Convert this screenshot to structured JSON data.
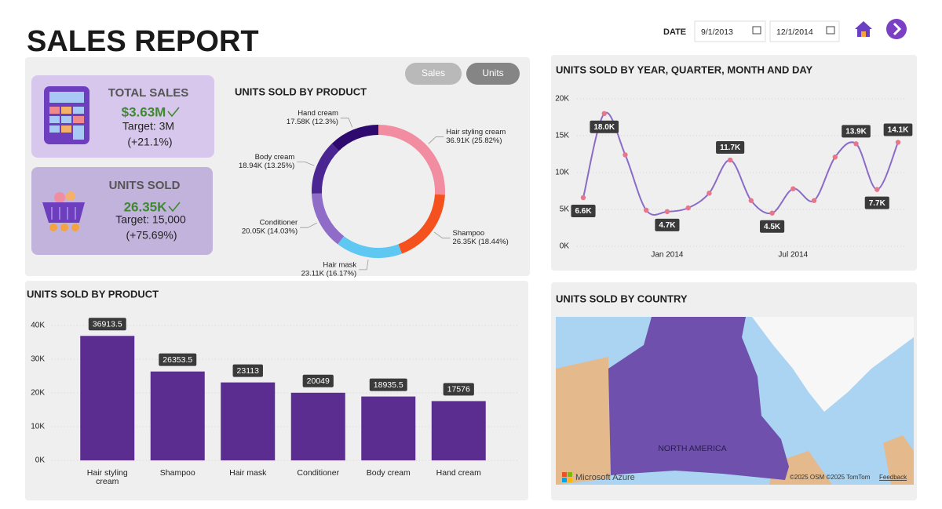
{
  "header": {
    "title": "SALES REPORT",
    "date_label": "DATE",
    "start_date": "9/1/2013",
    "end_date": "12/1/2014"
  },
  "toggle": [
    "Sales",
    "Units"
  ],
  "kpis": [
    {
      "title": "TOTAL SALES",
      "value": "$3.63M",
      "target": "Target: 3M",
      "change": "(+21.1%)"
    },
    {
      "title": "UNITS SOLD",
      "value": "26.35K",
      "target": "Target: 15,000",
      "change": "(+75.69%)"
    }
  ],
  "chart_data": [
    {
      "type": "pie",
      "title": "UNITS SOLD BY PRODUCT",
      "donut": true,
      "categories": [
        "Hair styling cream",
        "Shampoo",
        "Hair mask",
        "Conditioner",
        "Body cream",
        "Hand cream"
      ],
      "values": [
        36913.5,
        26353.5,
        23113,
        20049,
        18935.5,
        17576
      ],
      "value_labels": [
        "36.91K (25.82%)",
        "26.35K (18.44%)",
        "23.11K (16.17%)",
        "20.05K (14.03%)",
        "18.94K (13.25%)",
        "17.58K (12.3%)"
      ],
      "colors": [
        "#f28ca0",
        "#f4511e",
        "#5ec8f2",
        "#8e6cc7",
        "#4b2591",
        "#2e0a6e"
      ]
    },
    {
      "type": "bar",
      "title": "UNITS SOLD BY PRODUCT",
      "categories": [
        "Hair styling cream",
        "Shampoo",
        "Hair mask",
        "Conditioner",
        "Body cream",
        "Hand cream"
      ],
      "values": [
        36913.5,
        26353.5,
        23113,
        20049,
        18935.5,
        17576
      ],
      "color": "#5c2d91",
      "ylim": [
        0,
        40000
      ],
      "yticks": [
        {
          "value": 0,
          "label": "0K"
        },
        {
          "value": 10000,
          "label": "10K"
        },
        {
          "value": 20000,
          "label": "20K"
        },
        {
          "value": 30000,
          "label": "30K"
        },
        {
          "value": 40000,
          "label": "40K"
        }
      ],
      "grid": true
    },
    {
      "type": "line",
      "title": "UNITS SOLD BY YEAR, QUARTER, MONTH AND DAY",
      "x": [
        "2013-09",
        "2013-10",
        "2013-11",
        "2013-12",
        "2014-01",
        "2014-02",
        "2014-03",
        "2014-04",
        "2014-05",
        "2014-06",
        "2014-07",
        "2014-08",
        "2014-09",
        "2014-10",
        "2014-11",
        "2014-12"
      ],
      "values": [
        6600,
        18000,
        12400,
        4900,
        4700,
        5200,
        7200,
        11700,
        6200,
        4500,
        7800,
        6200,
        12100,
        13900,
        7700,
        14100
      ],
      "value_labels": [
        "6.6K",
        "18.0K",
        null,
        null,
        "4.7K",
        null,
        null,
        "11.7K",
        null,
        "4.5K",
        null,
        null,
        null,
        "13.9K",
        "7.7K",
        "14.1K"
      ],
      "color": "#8a6cc7",
      "marker_color": "#e8768a",
      "xticks": [
        {
          "value": "2014-01",
          "label": "Jan 2014"
        },
        {
          "value": "2014-07",
          "label": "Jul 2014"
        }
      ],
      "ylim": [
        0,
        20000
      ],
      "yticks": [
        {
          "value": 0,
          "label": "0K"
        },
        {
          "value": 5000,
          "label": "5K"
        },
        {
          "value": 10000,
          "label": "10K"
        },
        {
          "value": 15000,
          "label": "15K"
        },
        {
          "value": 20000,
          "label": "20K"
        }
      ],
      "grid": true
    }
  ],
  "map": {
    "title": "UNITS SOLD BY COUNTRY",
    "region_label": "NORTH AMERICA",
    "provider": "Microsoft Azure",
    "attribution": "©2025 OSM ©2025 TomTom",
    "feedback": "Feedback"
  }
}
